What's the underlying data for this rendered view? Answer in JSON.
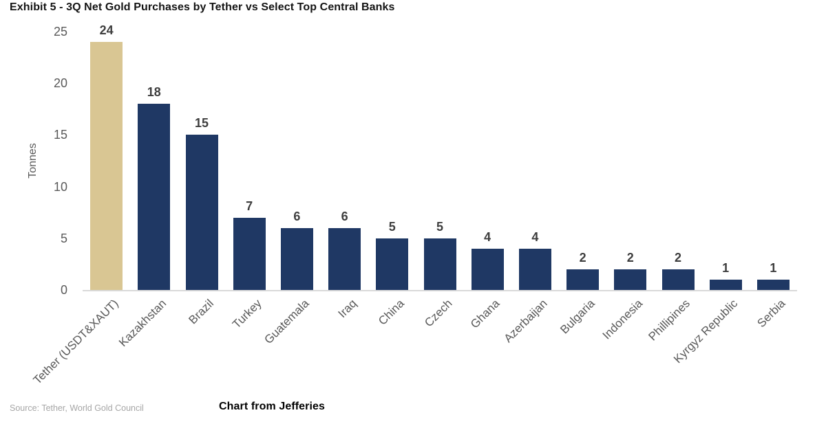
{
  "header": {
    "title": "Exhibit 5 - 3Q Net Gold Purchases by Tether vs Select Top Central Banks"
  },
  "chart_data": {
    "type": "bar",
    "title": "Exhibit 5 - 3Q Net Gold Purchases by Tether vs Select Top Central Banks",
    "xlabel": "",
    "ylabel": "Tonnes",
    "ylim": [
      0,
      25
    ],
    "yticks": [
      0,
      5,
      10,
      15,
      20,
      25
    ],
    "grid": false,
    "legend": "none",
    "value_labels": true,
    "categories": [
      "Tether (USDT&XAUT)",
      "Kazakhstan",
      "Brazil",
      "Turkey",
      "Guatemala",
      "Iraq",
      "China",
      "Czech",
      "Ghana",
      "Azerbaijan",
      "Bulgaria",
      "Indonesia",
      "Phillipines",
      "Kyrgyz Republic",
      "Serbia"
    ],
    "values": [
      24,
      18,
      15,
      7,
      6,
      6,
      5,
      5,
      4,
      4,
      2,
      2,
      2,
      1,
      1
    ],
    "highlight_index": 0,
    "colors": {
      "highlight_bar": "#d9c693",
      "default_bar": "#1f3864",
      "baseline": "#d9d9d9",
      "tick_text": "#595959",
      "value_text": "#3d3d3d"
    }
  },
  "footer": {
    "source": "Source: Tether, World Gold Council",
    "credit": "Chart from Jefferies"
  }
}
